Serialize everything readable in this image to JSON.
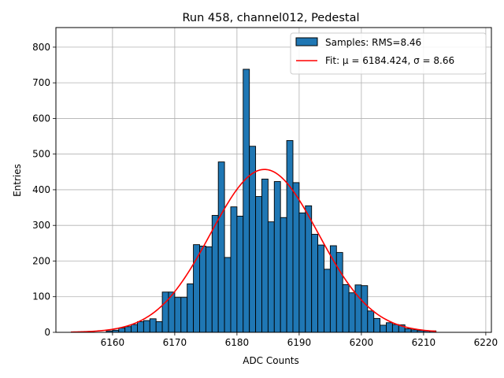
{
  "chart_data": {
    "type": "bar",
    "title": "Run 458, channel012, Pedestal",
    "xlabel": "ADC Counts",
    "ylabel": "Entries",
    "xlim": [
      6150.9,
      6220.9
    ],
    "ylim": [
      0,
      855
    ],
    "x_ticks": [
      6160,
      6170,
      6180,
      6190,
      6200,
      6210,
      6220
    ],
    "y_ticks": [
      0,
      100,
      200,
      300,
      400,
      500,
      600,
      700,
      800
    ],
    "grid": true,
    "legend_position": "top-right",
    "colors": {
      "bars": "#1f77b4",
      "bar_edge": "#000000",
      "fit": "#ff0000",
      "grid": "#b0b0b0"
    },
    "series": [
      {
        "name": "Samples: RMS=8.46",
        "type": "histogram",
        "bin_width": 1,
        "bins": [
          [
            6159,
            4
          ],
          [
            6160,
            6
          ],
          [
            6161,
            12
          ],
          [
            6162,
            16
          ],
          [
            6163,
            22
          ],
          [
            6164,
            30
          ],
          [
            6165,
            33
          ],
          [
            6166,
            38
          ],
          [
            6167,
            30
          ],
          [
            6168,
            113
          ],
          [
            6169,
            113
          ],
          [
            6170,
            98
          ],
          [
            6171,
            98
          ],
          [
            6172,
            136
          ],
          [
            6173,
            246
          ],
          [
            6174,
            242
          ],
          [
            6175,
            240
          ],
          [
            6176,
            328
          ],
          [
            6177,
            478
          ],
          [
            6178,
            210
          ],
          [
            6179,
            352
          ],
          [
            6180,
            326
          ],
          [
            6181,
            738
          ],
          [
            6182,
            522
          ],
          [
            6183,
            381
          ],
          [
            6184,
            430
          ],
          [
            6185,
            310
          ],
          [
            6186,
            423
          ],
          [
            6187,
            322
          ],
          [
            6188,
            538
          ],
          [
            6189,
            420
          ],
          [
            6190,
            335
          ],
          [
            6191,
            355
          ],
          [
            6192,
            275
          ],
          [
            6193,
            245
          ],
          [
            6194,
            177
          ],
          [
            6195,
            243
          ],
          [
            6196,
            224
          ],
          [
            6197,
            134
          ],
          [
            6198,
            111
          ],
          [
            6199,
            133
          ],
          [
            6200,
            131
          ],
          [
            6201,
            60
          ],
          [
            6202,
            39
          ],
          [
            6203,
            20
          ],
          [
            6204,
            27
          ],
          [
            6205,
            22
          ],
          [
            6206,
            21
          ],
          [
            6207,
            10
          ],
          [
            6208,
            7
          ],
          [
            6209,
            5
          ],
          [
            6210,
            4
          ],
          [
            6211,
            4
          ]
        ]
      },
      {
        "name": "Fit: μ = 6184.424, σ = 8.66",
        "type": "line",
        "mu": 6184.424,
        "sigma": 8.66,
        "amplitude": 457,
        "x_range": [
          6153.3,
          6212.0
        ]
      }
    ]
  }
}
